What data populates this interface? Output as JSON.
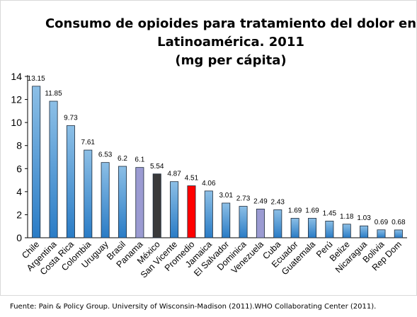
{
  "chart_data": {
    "type": "bar",
    "title_lines": [
      "Consumo de opioides para tratamiento del dolor en",
      "Latinoamérica. 2011",
      "(mg per cápita)"
    ],
    "xlabel": "",
    "ylabel": "",
    "ylim": [
      0,
      14
    ],
    "yticks": [
      "0",
      "2",
      "4",
      "6",
      "8",
      "10",
      "12",
      "14"
    ],
    "grid": false,
    "legend": "none",
    "categories": [
      "Chile",
      "Argentina",
      "Costa Rica",
      "Colombia",
      "Uruguay",
      "Brasil",
      "Panama",
      "México",
      "San Vicente",
      "Promedio",
      "Jamaica",
      "El Salvador",
      "Dominica",
      "Venezuela",
      "Cuba",
      "Ecuador",
      "Guatemala",
      "Perú",
      "Belize",
      "Nicaragua",
      "Bolivia",
      "Rep Dom"
    ],
    "values": [
      13.15,
      11.85,
      9.73,
      7.61,
      6.53,
      6.2,
      6.1,
      5.54,
      4.87,
      4.51,
      4.06,
      3.01,
      2.73,
      2.49,
      2.43,
      1.69,
      1.69,
      1.45,
      1.18,
      1.03,
      0.69,
      0.68
    ],
    "value_labels": [
      "13.15",
      "11.85",
      "9.73",
      "7.61",
      "6.53",
      "6.2",
      "6.1",
      "5.54",
      "4.87",
      "4.51",
      "4.06",
      "3.01",
      "2.73",
      "2.49",
      "2.43",
      "1.69",
      "1.69",
      "1.45",
      "1.18",
      "1.03",
      "0.69",
      "0.68"
    ],
    "colors": {
      "default_top": "#8cbfe6",
      "default_bottom": "#2a7cc6",
      "highlight": {
        "Panama": "#9b9bd2",
        "México": "#3a3a3a",
        "Promedio": "#ff0000",
        "Venezuela": "#9b9bd2"
      },
      "bar_edge": "#1c2a3a"
    }
  },
  "source": "Fuente: Pain & Policy Group. University of Wisconsin-Madison (2011).WHO Collaborating Center (2011)."
}
